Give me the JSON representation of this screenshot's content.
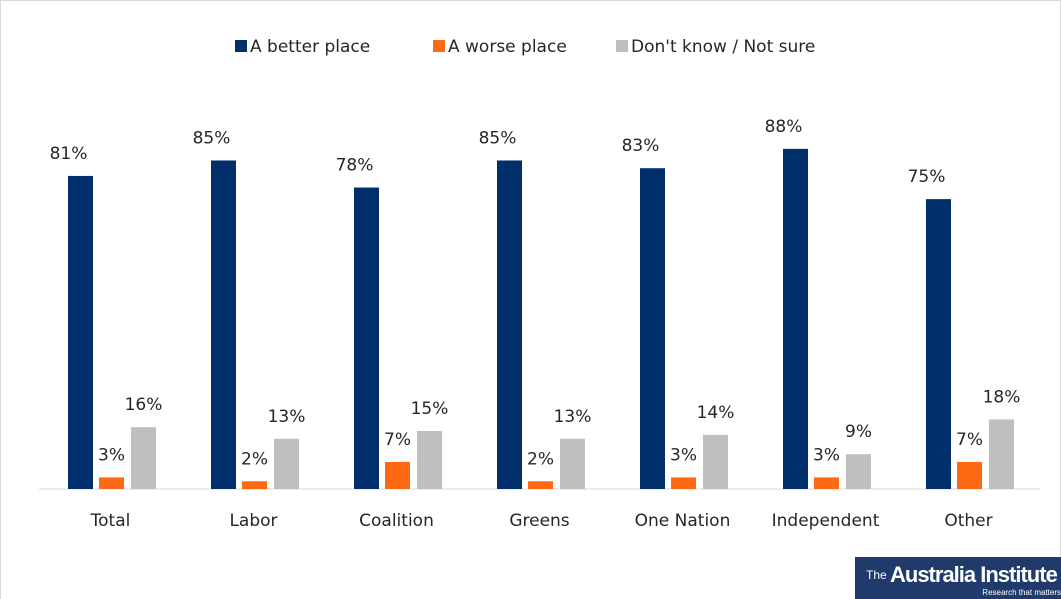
{
  "chart_data": {
    "type": "bar",
    "categories": [
      "Total",
      "Labor",
      "Coalition",
      "Greens",
      "One Nation",
      "Independent",
      "Other"
    ],
    "series": [
      {
        "name": "A better place",
        "color": "#002f6c",
        "values": [
          81,
          85,
          78,
          85,
          83,
          88,
          75
        ],
        "value_labels": [
          "81%",
          "85%",
          "78%",
          "85%",
          "83%",
          "88%",
          "75%"
        ]
      },
      {
        "name": "A worse place",
        "color": "#fe6a13",
        "values": [
          3,
          2,
          7,
          2,
          3,
          3,
          7
        ],
        "value_labels": [
          "3%",
          "2%",
          "7%",
          "2%",
          "3%",
          "3%",
          "7%"
        ]
      },
      {
        "name": "Don't know / Not sure",
        "color": "#bfbfbf",
        "values": [
          16,
          13,
          15,
          13,
          14,
          9,
          18
        ],
        "value_labels": [
          "16%",
          "13%",
          "15%",
          "13%",
          "14%",
          "9%",
          "18%"
        ]
      }
    ],
    "legend": "top"
  },
  "logo": {
    "name": "Australia Institute",
    "prefix": "The",
    "tagline": "Research that matters"
  }
}
